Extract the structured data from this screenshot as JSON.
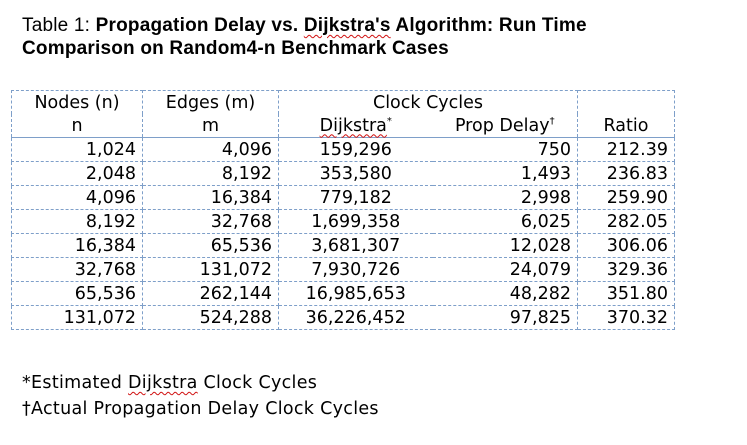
{
  "caption": {
    "prefix": "Table 1: ",
    "title_a": "Propagation Delay vs. ",
    "title_dijkstra": "Dijkstra's",
    "title_b": " Algorithm: Run Time",
    "line2": "Comparison on Random4-n Benchmark Cases"
  },
  "table": {
    "h_nodes": "Nodes (n)",
    "h_edges": "Edges (m)",
    "h_clock": "Clock Cycles",
    "h_n": "n",
    "h_m": "m",
    "h_dijkstra": "Dijkstra",
    "h_dijkstra_mark": "*",
    "h_prop": "Prop Delay",
    "h_prop_mark": "†",
    "h_ratio": "Ratio",
    "rows": [
      {
        "nodes": "1,024",
        "edges": "4,096",
        "dijkstra": "159,296",
        "prop": "750",
        "ratio": "212.39"
      },
      {
        "nodes": "2,048",
        "edges": "8,192",
        "dijkstra": "353,580",
        "prop": "1,493",
        "ratio": "236.83"
      },
      {
        "nodes": "4,096",
        "edges": "16,384",
        "dijkstra": "779,182",
        "prop": "2,998",
        "ratio": "259.90"
      },
      {
        "nodes": "8,192",
        "edges": "32,768",
        "dijkstra": "1,699,358",
        "prop": "6,025",
        "ratio": "282.05"
      },
      {
        "nodes": "16,384",
        "edges": "65,536",
        "dijkstra": "3,681,307",
        "prop": "12,028",
        "ratio": "306.06"
      },
      {
        "nodes": "32,768",
        "edges": "131,072",
        "dijkstra": "7,930,726",
        "prop": "24,079",
        "ratio": "329.36"
      },
      {
        "nodes": "65,536",
        "edges": "262,144",
        "dijkstra": "16,985,653",
        "prop": "48,282",
        "ratio": "351.80"
      },
      {
        "nodes": "131,072",
        "edges": "524,288",
        "dijkstra": "36,226,452",
        "prop": "97,825",
        "ratio": "370.32"
      }
    ]
  },
  "footnotes": {
    "f1_mark": "*Estimated ",
    "f1_word": "Dijkstra",
    "f1_rest": " Clock Cycles",
    "f2": "†Actual Propagation Delay Clock Cycles"
  }
}
